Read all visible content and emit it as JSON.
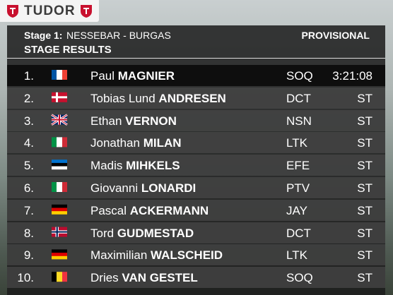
{
  "brand": "TUDOR",
  "header": {
    "stage_label": "Stage 1:",
    "stage_name": "NESSEBAR - BURGAS",
    "status": "PROVISIONAL",
    "title": "STAGE RESULTS"
  },
  "rows": [
    {
      "rank": "1.",
      "first_name": "Paul",
      "last_name": "MAGNIER",
      "team": "SOQ",
      "time": "3:21:08"
    },
    {
      "rank": "2.",
      "first_name": "Tobias Lund",
      "last_name": "ANDRESEN",
      "team": "DCT",
      "time": "ST"
    },
    {
      "rank": "3.",
      "first_name": "Ethan",
      "last_name": "VERNON",
      "team": "NSN",
      "time": "ST"
    },
    {
      "rank": "4.",
      "first_name": "Jonathan",
      "last_name": "MILAN",
      "team": "LTK",
      "time": "ST"
    },
    {
      "rank": "5.",
      "first_name": "Madis",
      "last_name": "MIHKELS",
      "team": "EFE",
      "time": "ST"
    },
    {
      "rank": "6.",
      "first_name": "Giovanni",
      "last_name": "LONARDI",
      "team": "PTV",
      "time": "ST"
    },
    {
      "rank": "7.",
      "first_name": "Pascal",
      "last_name": "ACKERMANN",
      "team": "JAY",
      "time": "ST"
    },
    {
      "rank": "8.",
      "first_name": "Tord",
      "last_name": "GUDMESTAD",
      "team": "DCT",
      "time": "ST"
    },
    {
      "rank": "9.",
      "first_name": "Maximilian",
      "last_name": "WALSCHEID",
      "team": "LTK",
      "time": "ST"
    },
    {
      "rank": "10.",
      "first_name": "Dries",
      "last_name": "VAN GESTEL",
      "team": "SOQ",
      "time": "ST"
    }
  ]
}
